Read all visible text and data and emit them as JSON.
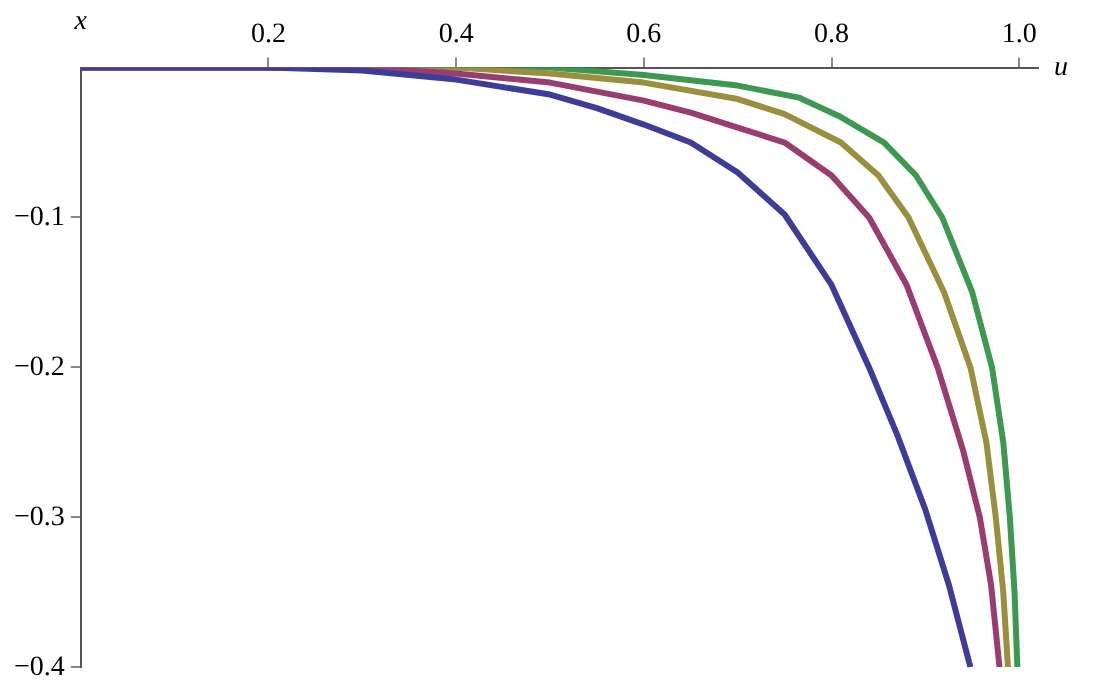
{
  "chart_data": {
    "type": "line",
    "xlabel": "u",
    "ylabel": "x",
    "xlim": [
      0,
      1.02
    ],
    "ylim": [
      -0.4,
      0
    ],
    "xticks": [
      0.2,
      0.4,
      0.6,
      0.8,
      {
        "value": 1,
        "label": "1.0"
      }
    ],
    "yticks": [
      {
        "value": -0.1,
        "label": "−0.1"
      },
      {
        "value": -0.2,
        "label": "−0.2"
      },
      {
        "value": -0.3,
        "label": "−0.3"
      },
      {
        "value": -0.4,
        "label": "−0.4"
      }
    ],
    "grid": false,
    "legend": false,
    "marker": "none",
    "line_style": "solid",
    "series": [
      {
        "color": "#3d3d99",
        "x": [
          0,
          0.2,
          0.3,
          0.4,
          0.5,
          0.55,
          0.6,
          0.65,
          0.7,
          0.75,
          0.8,
          0.84,
          0.87,
          0.9,
          0.925,
          0.948
        ],
        "values": [
          0,
          0,
          -0.002,
          -0.008,
          -0.018,
          -0.027,
          -0.038,
          -0.05,
          -0.07,
          -0.098,
          -0.145,
          -0.2,
          -0.245,
          -0.295,
          -0.345,
          -0.4
        ]
      },
      {
        "color": "#993d71",
        "x": [
          0,
          0.3,
          0.4,
          0.5,
          0.6,
          0.65,
          0.7,
          0.75,
          0.8,
          0.84,
          0.88,
          0.913,
          0.94,
          0.958,
          0.97,
          0.979
        ],
        "values": [
          0,
          0,
          -0.004,
          -0.01,
          -0.022,
          -0.03,
          -0.04,
          -0.05,
          -0.072,
          -0.1,
          -0.145,
          -0.2,
          -0.255,
          -0.3,
          -0.345,
          -0.4
        ]
      },
      {
        "color": "#998f3d",
        "x": [
          0,
          0.4,
          0.5,
          0.6,
          0.7,
          0.75,
          0.81,
          0.85,
          0.882,
          0.92,
          0.948,
          0.965,
          0.975,
          0.983,
          0.988
        ],
        "values": [
          0,
          0,
          -0.004,
          -0.01,
          -0.021,
          -0.031,
          -0.05,
          -0.072,
          -0.1,
          -0.15,
          -0.2,
          -0.25,
          -0.3,
          -0.35,
          -0.4
        ]
      },
      {
        "color": "#3d9951",
        "x": [
          0,
          0.5,
          0.6,
          0.7,
          0.765,
          0.81,
          0.856,
          0.89,
          0.918,
          0.95,
          0.971,
          0.983,
          0.99,
          0.995,
          0.998
        ],
        "values": [
          0,
          0,
          -0.005,
          -0.012,
          -0.02,
          -0.033,
          -0.05,
          -0.072,
          -0.1,
          -0.15,
          -0.2,
          -0.25,
          -0.3,
          -0.35,
          -0.4
        ]
      }
    ]
  }
}
